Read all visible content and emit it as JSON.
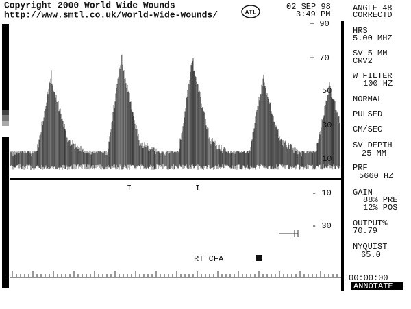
{
  "header": {
    "copyright": "Copyright 2000 World Wide Wounds",
    "url": "http://www.smtl.co.uk/World-Wide-Wounds/",
    "logo": "ATL",
    "date": "02 SEP 98",
    "time": "3:49 PM"
  },
  "scale": [
    "+ 90",
    "+ 70",
    "50",
    "30",
    "10",
    "- 10",
    "- 30"
  ],
  "markers": [
    "I",
    "I"
  ],
  "annotation": "RT CFA",
  "panel": [
    "ANGLE 48",
    "CORRECTD",
    "HRS",
    "5.00 MHZ",
    "SV 5  MM",
    "CRV2",
    "W FILTER",
    "100 HZ",
    "NORMAL",
    "PULSED",
    "CM/SEC",
    "SV DEPTH",
    "25 MM",
    "PRF",
    "5660 HZ",
    "GAIN",
    "88% PRE",
    "12% POS",
    "OUTPUT%",
    "70.79",
    "NYQUIST",
    "65.0"
  ],
  "footer": {
    "clock": "00:00:00",
    "button": "ANNOTATE"
  }
}
